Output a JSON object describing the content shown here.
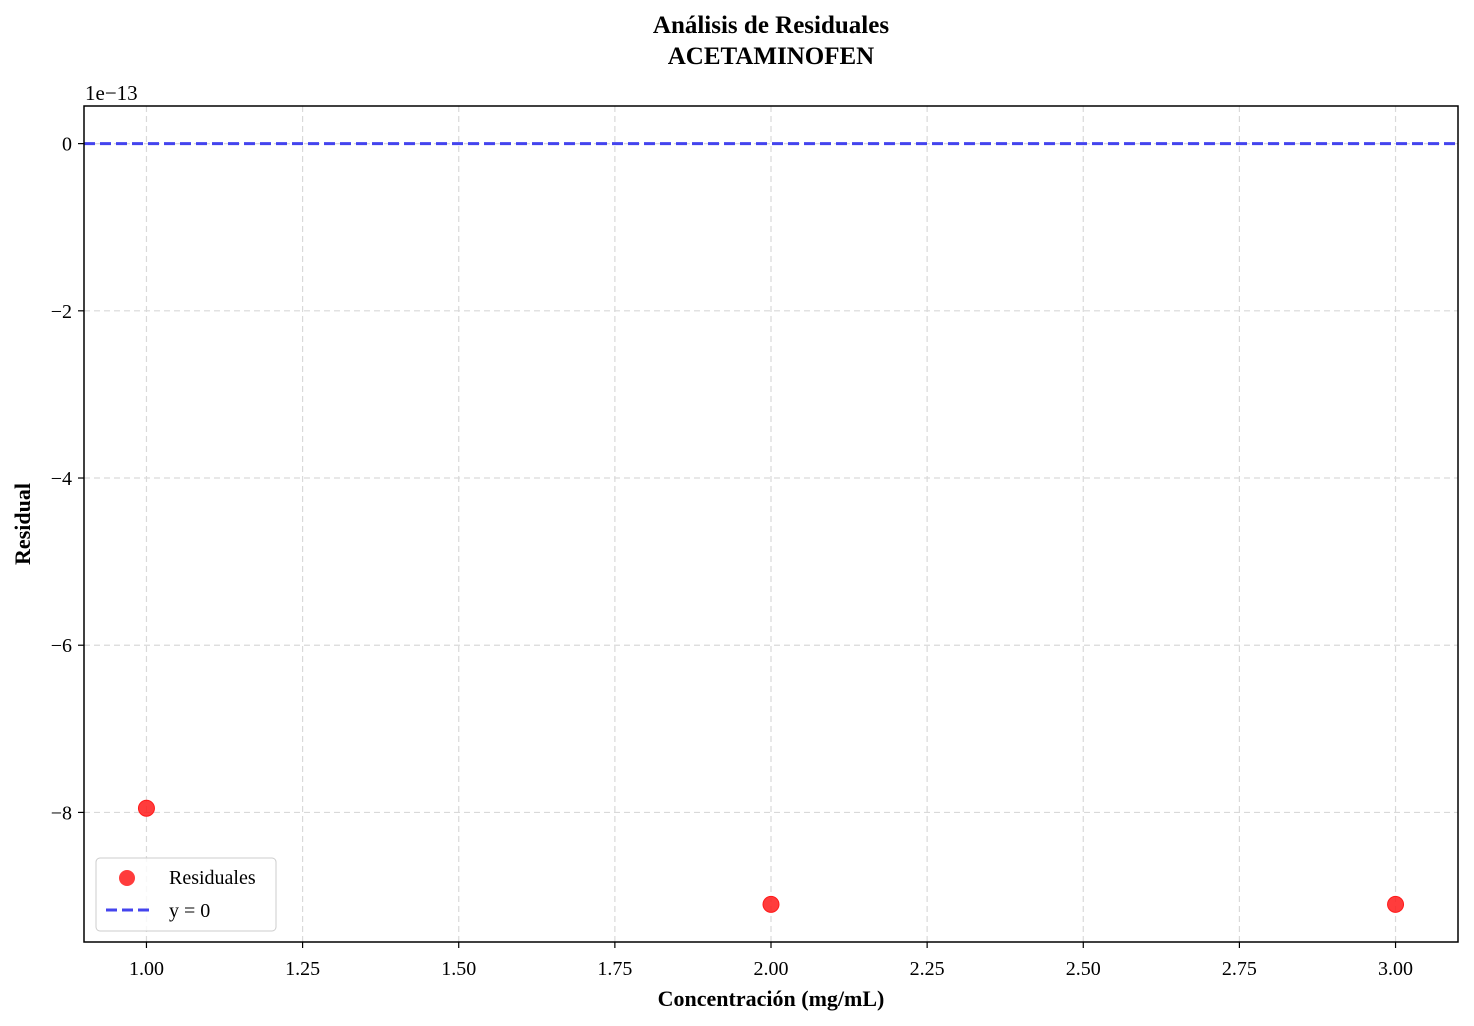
{
  "chart_data": {
    "type": "scatter",
    "title": "Análisis de Residuales",
    "subtitle": "ACETAMINOFEN",
    "xlabel": "Concentración (mg/mL)",
    "ylabel": "Residual",
    "y_offset_label": "1e−13",
    "xlim": [
      0.9,
      3.1
    ],
    "ylim": [
      -9.55,
      0.45
    ],
    "x_ticks": [
      1.0,
      1.25,
      1.5,
      1.75,
      2.0,
      2.25,
      2.5,
      2.75,
      3.0
    ],
    "x_tick_labels": [
      "1.00",
      "1.25",
      "1.50",
      "1.75",
      "2.00",
      "2.25",
      "2.50",
      "2.75",
      "3.00"
    ],
    "y_ticks": [
      0,
      -2,
      -4,
      -6,
      -8
    ],
    "y_tick_labels": [
      "0",
      "−2",
      "−4",
      "−6",
      "−8"
    ],
    "grid": true,
    "legend_position": "lower-left",
    "series": [
      {
        "name": "Residuales",
        "kind": "scatter",
        "color": "#ff1a1a",
        "x": [
          1.0,
          2.0,
          3.0
        ],
        "y": [
          -7.95,
          -9.1,
          -9.1
        ]
      },
      {
        "name": "y = 0",
        "kind": "hline",
        "color": "#4444ee",
        "y": 0
      }
    ]
  }
}
